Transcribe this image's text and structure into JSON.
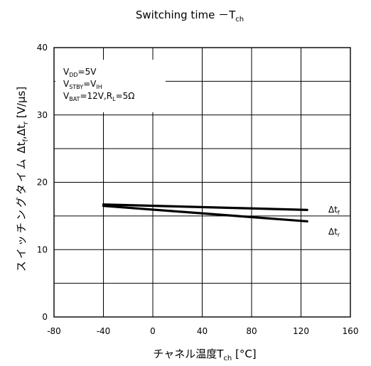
{
  "chart_data": {
    "type": "line",
    "title": {
      "main": "Switching time ",
      "dash": "－",
      "var": "T",
      "sub": "ch"
    },
    "xlabel": {
      "main": "チャネル温度T",
      "sub": "ch",
      "unit": " [°C]"
    },
    "ylabel": {
      "jp": "スイッチングタイム",
      "d1": "Δt",
      "s1": "f",
      "comma": ",Δt",
      "s2": "r",
      "unit": " [V/μs]"
    },
    "xlim": [
      -80,
      160
    ],
    "ylim": [
      0,
      40
    ],
    "xticks": [
      -80,
      -40,
      0,
      40,
      80,
      120,
      160
    ],
    "yticks": [
      0,
      10,
      20,
      30,
      40
    ],
    "grid": true,
    "conditions": [
      {
        "parts": [
          {
            "t": "V"
          },
          {
            "t": "DD",
            "sub": true
          },
          {
            "t": "=5V"
          }
        ]
      },
      {
        "parts": [
          {
            "t": "V"
          },
          {
            "t": "STBY",
            "sub": true
          },
          {
            "t": "=V"
          },
          {
            "t": "IH",
            "sub": true
          }
        ]
      },
      {
        "parts": [
          {
            "t": "V"
          },
          {
            "t": "BAT",
            "sub": true
          },
          {
            "t": "=12V,R"
          },
          {
            "t": "L",
            "sub": true
          },
          {
            "t": "=5Ω"
          }
        ]
      }
    ],
    "series": [
      {
        "name": "Δtf",
        "label_main": "Δt",
        "label_sub": "f",
        "x": [
          -40,
          125
        ],
        "y": [
          16.7,
          15.9
        ],
        "color": "#000000"
      },
      {
        "name": "Δtr",
        "label_main": "Δt",
        "label_sub": "r",
        "x": [
          -40,
          125
        ],
        "y": [
          16.5,
          14.2
        ],
        "color": "#000000"
      }
    ]
  }
}
